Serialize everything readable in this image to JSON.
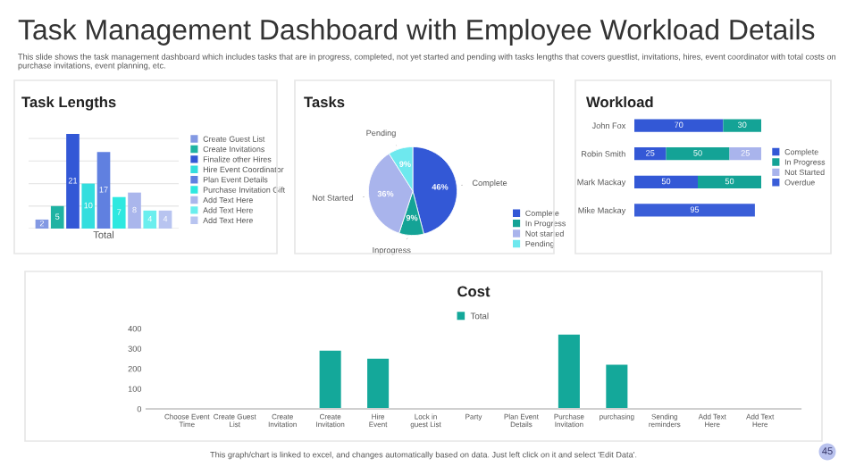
{
  "chart_data": [
    {
      "type": "other",
      "title": "Task Management Dashboard with Employee Workload Details",
      "subtitle": "This slide shows the task management dashboard which includes tasks that are in progress, completed, not yet started and pending with tasks lengths that covers guestlist, invitations, hires, event coordinator with total costs on purchase invitations, event planning, etc."
    },
    {
      "type": "bar",
      "title": "Task Lengths",
      "xlabel": "Total",
      "categories": [
        null
      ],
      "data_labels": true,
      "legend": "right",
      "grid": "y",
      "tick_labels": false,
      "series": [
        {
          "name": "Create Guest List",
          "color": "#8399e3",
          "values": [
            2
          ]
        },
        {
          "name": "Create Invitations",
          "color": "#1fb3a3",
          "values": [
            5
          ]
        },
        {
          "name": "Finalize other Hires",
          "color": "#3358d6",
          "values": [
            21
          ]
        },
        {
          "name": "Hire Event Coordinator",
          "color": "#33dede",
          "values": [
            10
          ]
        },
        {
          "name": "Plan Event Details",
          "color": "#6080e0",
          "values": [
            17
          ]
        },
        {
          "name": "Purchase Invitation Gift",
          "color": "#2ee8e0",
          "values": [
            7
          ]
        },
        {
          "name": "Add Text Here",
          "color": "#aab6ec",
          "values": [
            8
          ]
        },
        {
          "name": "Add Text Here",
          "color": "#6aeeee",
          "values": [
            4
          ]
        },
        {
          "name": "Add Text Here",
          "color": "#b8c4f0",
          "values": [
            4
          ]
        }
      ]
    },
    {
      "type": "pie",
      "title": "Tasks",
      "categories": [
        "Complete",
        "In Progress",
        "Not started",
        "Pending"
      ],
      "values": [
        46,
        9,
        36,
        9
      ],
      "value_labels": [
        "46%",
        "9%",
        "36%",
        "9%"
      ],
      "colors": [
        "#3358d6",
        "#14a396",
        "#a9b4ec",
        "#6ee8ee"
      ],
      "legend": "right",
      "annotations": [
        "Complete",
        "Inprogress",
        "Not Started",
        "Pending"
      ]
    },
    {
      "type": "bar",
      "orientation": "horizontal",
      "stacked": true,
      "title": "Workload",
      "categories": [
        "John Fox",
        "Robin Smith",
        "Mark Mackay",
        "Mike Mackay"
      ],
      "data_labels": true,
      "legend": "right",
      "series": [
        {
          "name": "Complete",
          "color": "#3358d6",
          "values": [
            70,
            25,
            50,
            null
          ]
        },
        {
          "name": "In Progress",
          "color": "#14a396",
          "values": [
            30,
            50,
            50,
            null
          ]
        },
        {
          "name": "Not Started",
          "color": "#a9b4ec",
          "values": [
            null,
            25,
            null,
            null
          ]
        },
        {
          "name": "Overdue",
          "color": "#3a5ed8",
          "values": [
            null,
            null,
            null,
            95
          ]
        }
      ]
    },
    {
      "type": "bar",
      "title": "Cost",
      "categories": [
        "Choose Event Time",
        "Create Guest List",
        "Create Invitation",
        "Create Invitation",
        "Hire Event",
        "Lock in guest List",
        "Party",
        "Plan Event Details",
        "Purchase Invitation",
        "purchasing",
        "Sending reminders",
        "Add Text Here",
        "Add Text Here"
      ],
      "ylim": [
        0,
        400
      ],
      "yticks": [
        0,
        100,
        200,
        300,
        400
      ],
      "legend": "top",
      "series": [
        {
          "name": "Total",
          "color": "#14a89a",
          "values": [
            0,
            0,
            0,
            290,
            250,
            0,
            0,
            0,
            370,
            220,
            0,
            0,
            0
          ]
        }
      ],
      "annotations": [
        "This graph/chart is linked to excel, and changes automatically based on data. Just left click on it and select 'Edit Data'.",
        "45"
      ]
    }
  ]
}
